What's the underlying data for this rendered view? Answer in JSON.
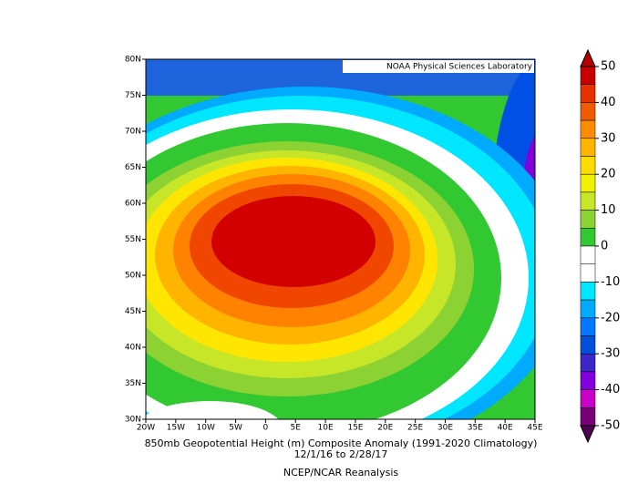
{
  "map": {
    "credit": "NOAA Physical Sciences Laboratory",
    "title_lines": [
      "850mb Geopotential Height (m) Composite Anomaly (1991-2020 Climatology)",
      "12/1/16   to 2/28/17",
      "NCEP/NCAR Reanalysis"
    ],
    "lat_ticks": [
      "80N",
      "75N",
      "70N",
      "65N",
      "60N",
      "55N",
      "50N",
      "45N",
      "40N",
      "35N",
      "30N"
    ],
    "lon_ticks": [
      "20W",
      "15W",
      "10W",
      "5W",
      "0",
      "5E",
      "10E",
      "15E",
      "20E",
      "25E",
      "30E",
      "35E",
      "40E",
      "45E"
    ],
    "colorbar_labels": [
      "50",
      "40",
      "30",
      "20",
      "10",
      "0",
      "-10",
      "-20",
      "-30",
      "-40",
      "-50"
    ]
  }
}
